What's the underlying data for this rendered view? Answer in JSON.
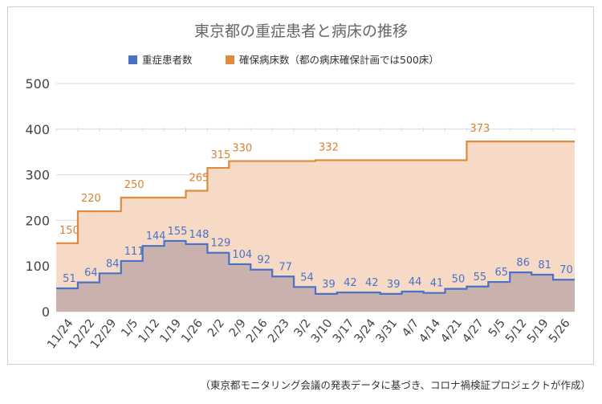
{
  "chart_data": {
    "type": "step-area",
    "title": "東京都の重症患者と病床の推移",
    "legend_position": "top",
    "grid": true,
    "ylim": [
      0,
      500
    ],
    "yticks": [
      0,
      100,
      200,
      300,
      400,
      500
    ],
    "categories": [
      "11/24",
      "12/22",
      "12/29",
      "1/5",
      "1/12",
      "1/19",
      "1/26",
      "2/2",
      "2/9",
      "2/16",
      "2/23",
      "3/2",
      "3/10",
      "3/17",
      "3/24",
      "3/31",
      "4/7",
      "4/14",
      "4/21",
      "4/27",
      "5/5",
      "5/12",
      "5/19",
      "5/26"
    ],
    "series": [
      {
        "name": "重症患者数",
        "color": "#4a72c4",
        "fill": "#c9b2ad",
        "values": [
          51,
          64,
          84,
          111,
          144,
          155,
          148,
          129,
          104,
          92,
          77,
          54,
          39,
          42,
          42,
          39,
          44,
          41,
          50,
          55,
          65,
          86,
          81,
          70
        ],
        "labels": [
          "51",
          "64",
          "84",
          "111",
          "144",
          "155",
          "148",
          "129",
          "104",
          "92",
          "77",
          "54",
          "39",
          "42",
          "42",
          "39",
          "44",
          "41",
          "50",
          "55",
          "65",
          "86",
          "81",
          "70"
        ]
      },
      {
        "name": "確保病床数（都の病床確保計画では500床）",
        "color": "#e08a3c",
        "fill": "#f6dac6",
        "values": [
          150,
          220,
          220,
          250,
          250,
          250,
          265,
          315,
          330,
          330,
          330,
          330,
          332,
          332,
          332,
          332,
          332,
          332,
          332,
          373,
          373,
          373,
          373,
          373
        ],
        "labels": [
          "150",
          "220",
          "",
          "250",
          "",
          "",
          "265",
          "315",
          "330",
          "",
          "",
          "",
          "332",
          "",
          "",
          "",
          "",
          "",
          "",
          "373",
          "",
          "",
          "",
          ""
        ]
      }
    ]
  },
  "caption": "（東京都モニタリング会議の発表データに基づき、コロナ禍検証プロジェクトが作成）"
}
